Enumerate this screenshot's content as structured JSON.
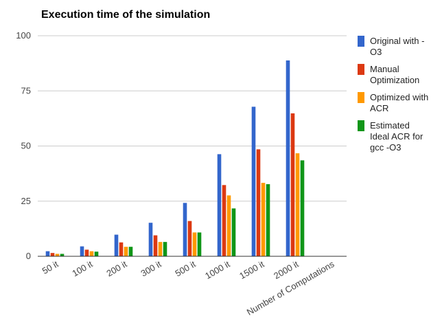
{
  "chart_data": {
    "type": "bar",
    "title": "Execution time of the simulation",
    "xlabel": "Number of Computations",
    "ylabel": "",
    "ylim": [
      0,
      100
    ],
    "yticks": [
      0,
      25,
      50,
      75,
      100
    ],
    "grid": true,
    "legend_position": "right",
    "categories": [
      "50 it",
      "100 it",
      "200 it",
      "300 it",
      "500 it",
      "1000 it",
      "1500 it",
      "2000 it"
    ],
    "series": [
      {
        "name_lines": [
          "Original with -",
          "O3"
        ],
        "color": "#3366cc",
        "values": [
          2.3,
          4.5,
          9.8,
          15.2,
          24.2,
          46.3,
          67.8,
          88.8
        ]
      },
      {
        "name_lines": [
          "Manual",
          "Optimization"
        ],
        "color": "#dc3912",
        "values": [
          1.5,
          3.0,
          6.3,
          9.5,
          16.0,
          32.3,
          48.5,
          64.8
        ]
      },
      {
        "name_lines": [
          "Optimized with",
          "ACR"
        ],
        "color": "#ff9900",
        "values": [
          1.1,
          2.3,
          4.3,
          6.5,
          10.8,
          27.6,
          33.3,
          46.7
        ]
      },
      {
        "name_lines": [
          "Estimated",
          "Ideal ACR for",
          "gcc -O3"
        ],
        "color": "#109618",
        "values": [
          1.1,
          2.1,
          4.3,
          6.5,
          10.8,
          21.7,
          32.7,
          43.5
        ]
      }
    ]
  }
}
